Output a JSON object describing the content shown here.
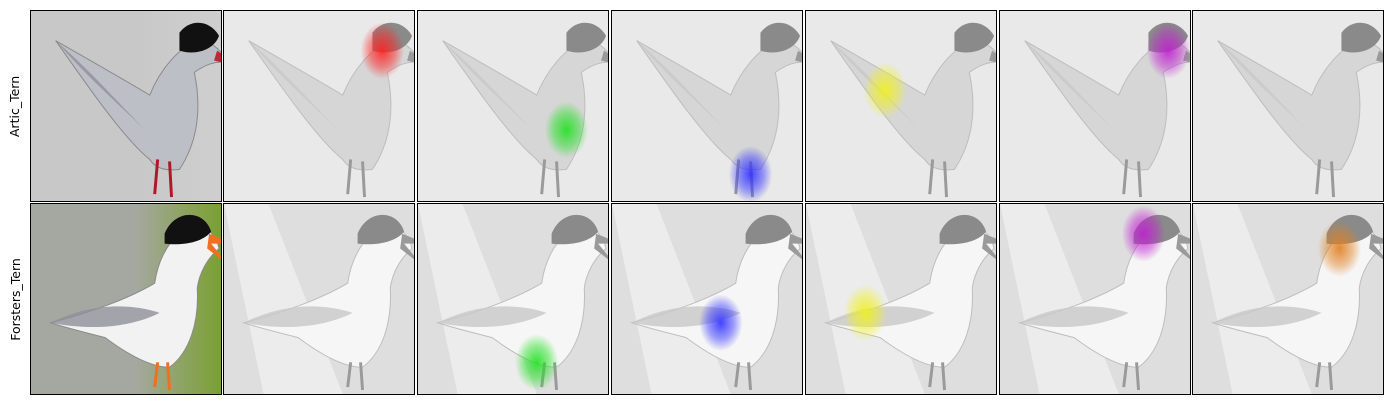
{
  "rows": [
    {
      "label": "Artic_Tern",
      "photo": {
        "background": "#c8c8c8",
        "sky": "#cfcfcf",
        "cap": "#111111",
        "beak": "#c0283a",
        "legs": "#b0182a",
        "body": "#bdbfc6"
      },
      "overlays": [
        "#ff2020",
        "#22e022",
        "#3030ff",
        "#f0f020",
        "#c020d0",
        null
      ]
    },
    {
      "label": "Forsters_Tern",
      "photo": {
        "background": "#a5a8a0",
        "sky": "#7aa032",
        "cap": "#111111",
        "beak": "#f07020",
        "legs": "#f07020",
        "body": "#f2f2f2"
      },
      "overlays": [
        null,
        "#22e022",
        "#3030ff",
        "#f0f020",
        "#c020d0",
        "#e08020"
      ]
    }
  ]
}
